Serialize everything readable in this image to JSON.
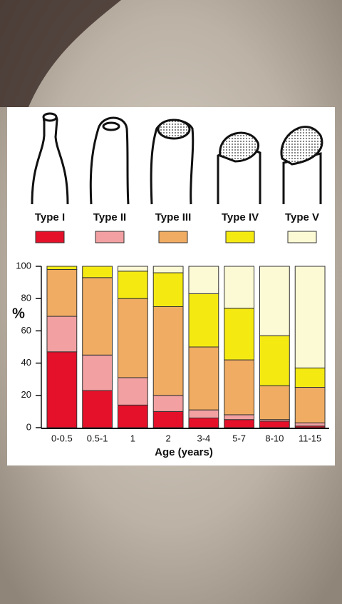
{
  "chart_data": {
    "type": "stacked_bar",
    "y_label": "%",
    "x_label": "Age (years)",
    "categories": [
      "0-0.5",
      "0.5-1",
      "1",
      "2",
      "3-4",
      "5-7",
      "8-10",
      "11-15"
    ],
    "series": [
      {
        "name": "Type I",
        "color": "#e5102a",
        "values": [
          47,
          23,
          14,
          10,
          6,
          5,
          4,
          1
        ]
      },
      {
        "name": "Type II",
        "color": "#f2a0a2",
        "values": [
          22,
          22,
          17,
          10,
          5,
          3,
          1,
          2
        ]
      },
      {
        "name": "Type III",
        "color": "#f0ac62",
        "values": [
          29,
          48,
          49,
          55,
          39,
          34,
          21,
          22
        ]
      },
      {
        "name": "Type IV",
        "color": "#f4ea12",
        "values": [
          2,
          7,
          17,
          21,
          33,
          32,
          31,
          12
        ]
      },
      {
        "name": "Type V",
        "color": "#fcfad4",
        "values": [
          0,
          0,
          3,
          4,
          17,
          26,
          43,
          63
        ]
      }
    ],
    "ylim": [
      0,
      100
    ],
    "yticks": [
      0,
      20,
      40,
      60,
      80,
      100
    ]
  }
}
